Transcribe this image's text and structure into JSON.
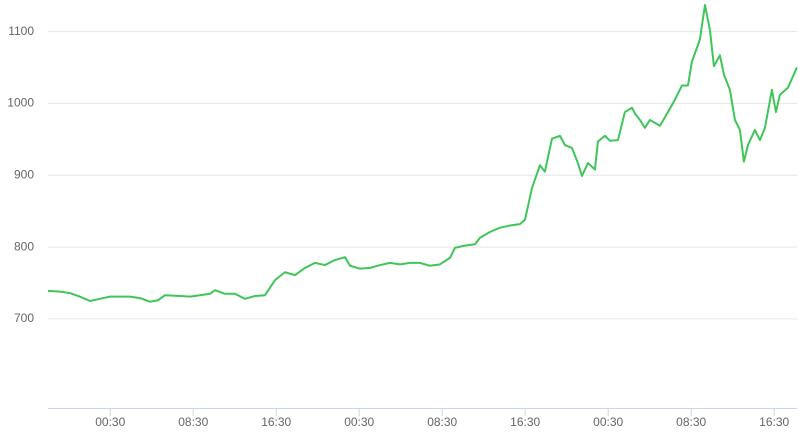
{
  "chart_data": {
    "type": "line",
    "x": [
      0,
      1.16,
      2.12,
      3.08,
      4.05,
      5.01,
      5.98,
      6.94,
      7.9,
      8.87,
      9.83,
      10.6,
      11.28,
      12.72,
      13.69,
      14.65,
      15.61,
      16.1,
      17.06,
      18.02,
      18.99,
      19.95,
      20.92,
      21.88,
      22.84,
      23.81,
      24.77,
      25.73,
      26.7,
      27.66,
      28.63,
      29.11,
      30.07,
      31.04,
      32,
      32.96,
      33.93,
      34.89,
      35.86,
      36.82,
      37.78,
      38.75,
      39.23,
      40.19,
      41.16,
      41.64,
      42.6,
      43.57,
      44.53,
      45.49,
      45.98,
      46.65,
      47.42,
      47.9,
      48.58,
      49.35,
      49.83,
      50.51,
      51.08,
      51.47,
      52.05,
      52.72,
      53.01,
      53.69,
      54.17,
      54.94,
      55.61,
      56.29,
      56.58,
      57.06,
      57.54,
      58.02,
      58.99,
      59.76,
      60.43,
      61.11,
      61.69,
      62.07,
      62.84,
      63.33,
      63.81,
      64.19,
      64.77,
      65.16,
      65.73,
      66.22,
      66.7,
      67.08,
      67.47,
      68.14,
      68.63,
      69.11,
      69.78,
      70.17,
      70.55,
      71.33,
      72.19
    ],
    "series": [
      {
        "color": "#3ec65a",
        "values": [
          739,
          738,
          736,
          731,
          725,
          728,
          731,
          731,
          731,
          729,
          724,
          726,
          733,
          732,
          731,
          733,
          735,
          740,
          735,
          735,
          728,
          732,
          733,
          754,
          765,
          761,
          771,
          778,
          775,
          782,
          786,
          774,
          770,
          771,
          775,
          778,
          776,
          778,
          778,
          774,
          776,
          785,
          799,
          802,
          804,
          813,
          821,
          827,
          830,
          832,
          838,
          882,
          914,
          905,
          951,
          955,
          942,
          938,
          917,
          899,
          917,
          908,
          947,
          955,
          948,
          949,
          988,
          994,
          986,
          977,
          966,
          977,
          969,
          988,
          1005,
          1025,
          1025,
          1058,
          1089,
          1137,
          1102,
          1052,
          1067,
          1040,
          1019,
          977,
          963,
          919,
          942,
          963,
          949,
          966,
          1019,
          988,
          1012,
          1022,
          1050
        ]
      }
    ],
    "xlim": [
      0,
      72.2
    ],
    "xticks": [
      {
        "value": 6,
        "label": "00:30"
      },
      {
        "value": 14,
        "label": "08:30"
      },
      {
        "value": 22,
        "label": "16:30"
      },
      {
        "value": 30,
        "label": "00:30"
      },
      {
        "value": 38,
        "label": "08:30"
      },
      {
        "value": 46,
        "label": "16:30"
      },
      {
        "value": 54,
        "label": "00:30"
      },
      {
        "value": 62,
        "label": "08:30"
      },
      {
        "value": 70,
        "label": "16:30"
      }
    ],
    "ylim": [
      576,
      1144
    ],
    "yticks": [
      700,
      800,
      900,
      1000,
      1100
    ],
    "grid": true
  }
}
